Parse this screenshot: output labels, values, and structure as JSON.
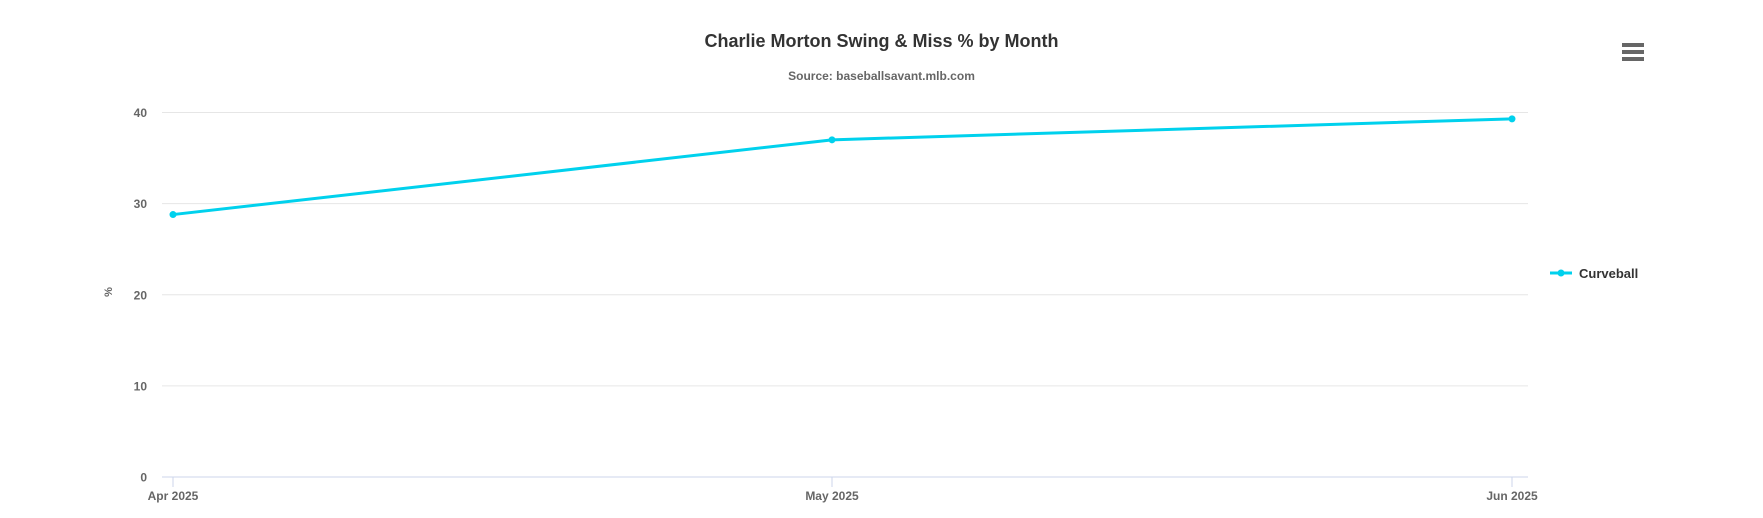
{
  "chart_data": {
    "type": "line",
    "title": "Charlie Morton Swing & Miss % by Month",
    "subtitle": "Source: baseballsavant.mlb.com",
    "x": [
      "Apr 2025",
      "May 2025",
      "Jun 2025"
    ],
    "series": [
      {
        "name": "Curveball",
        "color": "#00d1ed",
        "values": [
          28.8,
          37.0,
          39.3
        ]
      }
    ],
    "xlabel": "",
    "ylabel": "%",
    "ylim": [
      0,
      40
    ],
    "yticks": [
      0,
      10,
      20,
      30,
      40
    ],
    "grid": true,
    "legend_position": "right",
    "marker": "circle"
  },
  "toolbar": {
    "context_menu_icon": "hamburger-menu-icon"
  },
  "colors": {
    "background": "#ffffff",
    "title_text": "#333333",
    "subtitle_text": "#666666",
    "axis_label": "#666666",
    "gridline": "#e6e6e6",
    "axis_line": "#ccd6eb",
    "menu_icon": "#666666"
  }
}
